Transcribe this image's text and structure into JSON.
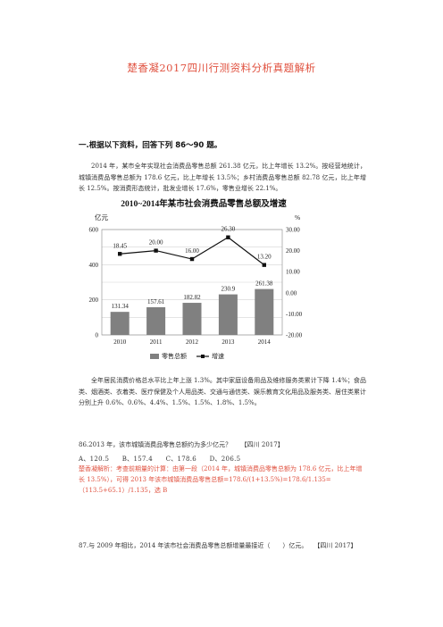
{
  "doc": {
    "title": "楚香凝2017四川行测资料分析真题解析",
    "section_heading": "一.根据以下资料，回答下列 86～90 题。",
    "para1": "2014 年，某市全年实现社会消费品零售总额 261.38 亿元，比上年增长 13.2%。按经营地统计，城镇消费品零售总额为 178.6 亿元，比上年增长 13.5%；乡村消费品零售总额 82.78 亿元，比上年增长 12.5%。按消费形态统计，批发业增长 17.6%，零售业增长 22.1%。",
    "para2": "全年居民消费价格总水平比上年上涨 1.3%。其中家庭设备用品及维修服务类累计下降 1.4%；食品类、烟酒类、衣着类、医疗保健及个人用品类、交通与通信类、娱乐教育文化用品及服务类、居住类累计分别上升 0.6%、0.6%、4.4%、1.5%、1.5%、1.8%、1.5%。",
    "q86": "86.2013 年，该市城镇消费品零售总额约为多少亿元？　　【四川 2017】",
    "q86_options": [
      "A、120.5",
      "B、157.4",
      "C、178.6",
      "D、206.5"
    ],
    "q86_analysis": "楚香凝解析：考查前期量的计算：由第一段（2014 年，城镇消费品零售总额为 178.6 亿元，比上年增长 13.5%），可得 2013 年该市城镇消费品零售总额=178.6/(1+13.5%)=178.6/1.135=（113.5+65.1）/1.135，选 B",
    "q87": "87.与 2009 年相比，2014 年该市社会消费品零售总额增量最接近（　　）亿元。　　【四川 2017】"
  },
  "chart_data": {
    "type": "bar+line",
    "title": "2010~2014年某市社会消费品零售总额及增速",
    "left_axis_label": "亿元",
    "right_axis_label": "%",
    "categories": [
      "2010",
      "2011",
      "2012",
      "2013",
      "2014"
    ],
    "ylim_left": [
      0,
      600
    ],
    "left_ticks": [
      "0",
      "200",
      "400",
      "600"
    ],
    "ylim_right": [
      -20,
      30
    ],
    "right_ticks": [
      "-20.00",
      "-10.00",
      "0.00",
      "10.00",
      "20.00",
      "30.00"
    ],
    "series": [
      {
        "name": "零售总额",
        "kind": "bar",
        "values": [
          131.34,
          157.61,
          182.82,
          230.9,
          261.38
        ],
        "labels": [
          "131.34",
          "157.61",
          "182.82",
          "230.9",
          "261.38"
        ],
        "color": "#808080"
      },
      {
        "name": "增速",
        "kind": "line",
        "axis": "right",
        "values": [
          18.45,
          20.0,
          16.0,
          26.3,
          13.2
        ],
        "labels": [
          "18.45",
          "20.00",
          "16.00",
          "26.30",
          "13.20"
        ],
        "color": "#111111"
      }
    ],
    "grid": true,
    "legend_position": "bottom"
  }
}
